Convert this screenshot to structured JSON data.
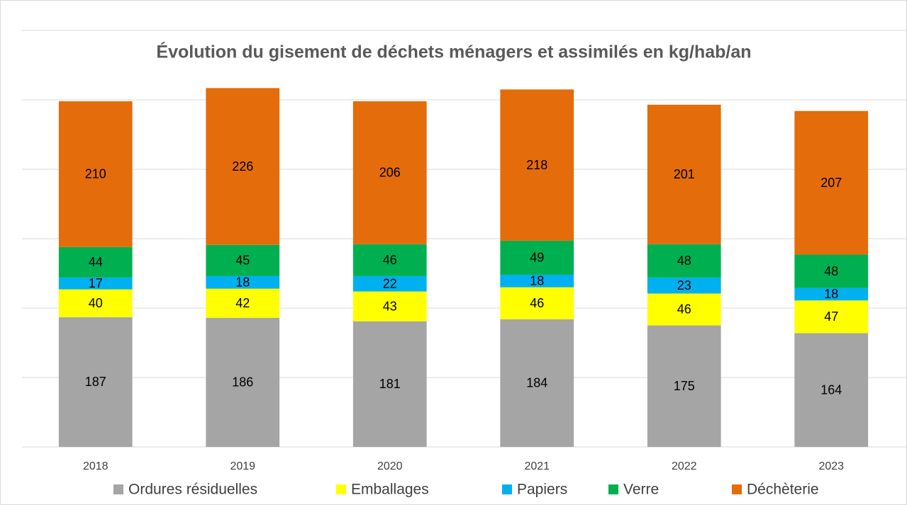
{
  "chart_data": {
    "type": "stacked_bar",
    "title": "Évolution du gisement de déchets ménagers et assimilés en kg/hab/an",
    "categories": [
      "2018",
      "2019",
      "2020",
      "2021",
      "2022",
      "2023"
    ],
    "series": [
      {
        "name": "Ordures résiduelles",
        "color": "#a5a5a5",
        "values": [
          187,
          186,
          181,
          184,
          175,
          164
        ]
      },
      {
        "name": "Emballages",
        "color": "#ffff00",
        "values": [
          40,
          42,
          43,
          46,
          46,
          47
        ]
      },
      {
        "name": "Papiers",
        "color": "#00b0f0",
        "values": [
          17,
          18,
          22,
          18,
          23,
          18
        ]
      },
      {
        "name": "Verre",
        "color": "#00b050",
        "values": [
          44,
          45,
          46,
          49,
          48,
          48
        ]
      },
      {
        "name": "Déchèterie",
        "color": "#e46c0a",
        "values": [
          210,
          226,
          206,
          218,
          201,
          207
        ]
      }
    ],
    "ylim": [
      0,
      600
    ],
    "yticks": [
      0,
      100,
      200,
      300,
      400,
      500,
      600
    ],
    "grid": true,
    "legend": "bottom"
  }
}
